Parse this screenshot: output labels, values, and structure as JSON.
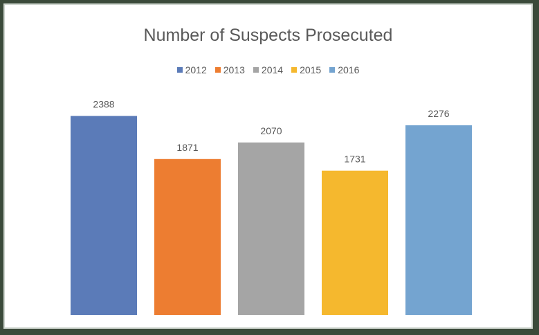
{
  "chart_data": {
    "type": "bar",
    "title": "Number of Suspects Prosecuted",
    "xlabel": "",
    "ylabel": "",
    "ylim": [
      0,
      2700
    ],
    "grid": false,
    "legend_position": "top-center",
    "series": [
      {
        "name": "2012",
        "values": [
          2388
        ],
        "color": "#5b7bb8"
      },
      {
        "name": "2013",
        "values": [
          1871
        ],
        "color": "#ed7d31"
      },
      {
        "name": "2014",
        "values": [
          2070
        ],
        "color": "#a5a5a5"
      },
      {
        "name": "2015",
        "values": [
          1731
        ],
        "color": "#f5b82e"
      },
      {
        "name": "2016",
        "values": [
          2276
        ],
        "color": "#74a4d0"
      }
    ],
    "data_labels": [
      "2388",
      "1871",
      "2070",
      "1731",
      "2276"
    ]
  }
}
